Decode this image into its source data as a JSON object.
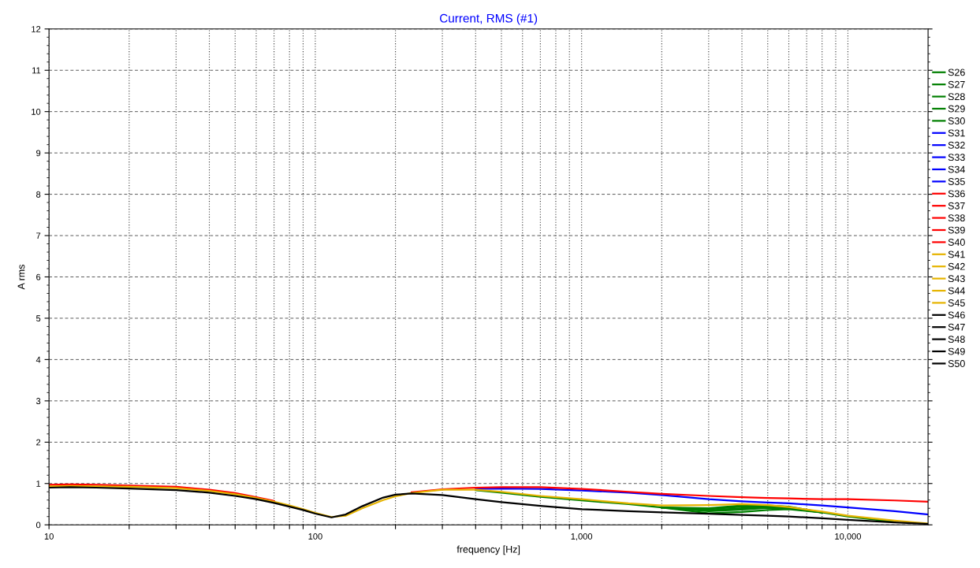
{
  "chart_data": {
    "type": "line",
    "title": "Current, RMS (#1)",
    "xlabel": "frequency [Hz]",
    "ylabel": "A rms",
    "log": "x",
    "x": [
      10,
      12,
      15,
      20,
      30,
      40,
      50,
      60,
      70,
      80,
      90,
      100,
      115,
      130,
      150,
      180,
      200,
      230,
      300,
      400,
      500,
      700,
      1000,
      1500,
      2000,
      3000,
      4000,
      5000,
      6000,
      8000,
      10000,
      15000,
      20000
    ],
    "xlim": [
      10,
      20000
    ],
    "xticks": [
      {
        "value": 10,
        "label": "10"
      },
      {
        "value": 20,
        "label": null
      },
      {
        "value": 30,
        "label": null
      },
      {
        "value": 40,
        "label": null
      },
      {
        "value": 50,
        "label": null
      },
      {
        "value": 60,
        "label": null
      },
      {
        "value": 70,
        "label": null
      },
      {
        "value": 80,
        "label": null
      },
      {
        "value": 90,
        "label": null
      },
      {
        "value": 100,
        "label": "100"
      },
      {
        "value": 200,
        "label": null
      },
      {
        "value": 300,
        "label": null
      },
      {
        "value": 400,
        "label": null
      },
      {
        "value": 500,
        "label": null
      },
      {
        "value": 600,
        "label": null
      },
      {
        "value": 700,
        "label": null
      },
      {
        "value": 800,
        "label": null
      },
      {
        "value": 900,
        "label": null
      },
      {
        "value": 1000,
        "label": "1,000"
      },
      {
        "value": 2000,
        "label": null
      },
      {
        "value": 3000,
        "label": null
      },
      {
        "value": 4000,
        "label": null
      },
      {
        "value": 5000,
        "label": null
      },
      {
        "value": 6000,
        "label": null
      },
      {
        "value": 7000,
        "label": null
      },
      {
        "value": 8000,
        "label": null
      },
      {
        "value": 9000,
        "label": null
      },
      {
        "value": 10000,
        "label": "10,000"
      }
    ],
    "ylim": [
      0,
      12
    ],
    "yticks": [
      0,
      1,
      2,
      3,
      4,
      5,
      6,
      7,
      8,
      9,
      10,
      11,
      12
    ],
    "grid": true,
    "legend": "right",
    "marker": "none",
    "line_style": "solid",
    "series": [
      {
        "name": "S26",
        "color": "#007f00",
        "values": [
          null,
          null,
          null,
          null,
          null,
          null,
          null,
          null,
          null,
          null,
          null,
          null,
          null,
          null,
          null,
          null,
          null,
          null,
          null,
          null,
          null,
          null,
          null,
          null,
          0.42,
          0.38,
          0.44,
          0.45,
          0.42,
          0.3,
          null,
          null,
          null
        ]
      },
      {
        "name": "S27",
        "color": "#007f00",
        "values": [
          null,
          null,
          null,
          null,
          null,
          null,
          null,
          null,
          null,
          null,
          null,
          null,
          null,
          null,
          null,
          null,
          null,
          null,
          null,
          null,
          null,
          null,
          null,
          null,
          0.42,
          0.33,
          0.37,
          0.41,
          0.4,
          0.3,
          null,
          null,
          null
        ]
      },
      {
        "name": "S28",
        "color": "#007f00",
        "values": [
          null,
          null,
          null,
          null,
          null,
          null,
          null,
          null,
          null,
          null,
          null,
          null,
          null,
          null,
          null,
          null,
          null,
          null,
          null,
          null,
          null,
          null,
          null,
          null,
          0.42,
          0.28,
          0.31,
          0.36,
          0.38,
          0.3,
          null,
          null,
          null
        ]
      },
      {
        "name": "S29",
        "color": "#007f00",
        "values": [
          null,
          null,
          null,
          null,
          null,
          null,
          null,
          null,
          null,
          null,
          null,
          null,
          null,
          null,
          null,
          null,
          null,
          null,
          null,
          null,
          null,
          null,
          null,
          null,
          0.42,
          0.4,
          0.47,
          0.47,
          0.44,
          0.3,
          null,
          null,
          null
        ]
      },
      {
        "name": "S30",
        "color": "#007f00",
        "values": [
          null,
          null,
          null,
          null,
          null,
          null,
          null,
          null,
          null,
          null,
          null,
          null,
          null,
          null,
          null,
          null,
          null,
          null,
          null,
          0.84,
          0.78,
          0.68,
          0.59,
          0.5,
          0.42,
          0.35,
          0.4,
          0.43,
          0.41,
          0.3,
          0.2,
          0.07,
          null
        ]
      },
      {
        "name": "S31",
        "color": "#0000ff",
        "values": [
          null,
          null,
          null,
          null,
          null,
          null,
          null,
          null,
          null,
          null,
          null,
          null,
          null,
          null,
          null,
          null,
          null,
          null,
          null,
          null,
          null,
          null,
          null,
          null,
          null,
          null,
          null,
          null,
          null,
          null,
          null,
          null,
          null
        ]
      },
      {
        "name": "S32",
        "color": "#0000ff",
        "values": [
          null,
          null,
          null,
          null,
          null,
          null,
          null,
          null,
          null,
          null,
          null,
          null,
          null,
          null,
          null,
          null,
          null,
          null,
          null,
          null,
          null,
          null,
          null,
          null,
          null,
          null,
          null,
          null,
          null,
          null,
          null,
          null,
          null
        ]
      },
      {
        "name": "S33",
        "color": "#0000ff",
        "values": [
          null,
          null,
          null,
          null,
          null,
          null,
          null,
          null,
          null,
          null,
          null,
          null,
          null,
          null,
          null,
          null,
          null,
          null,
          null,
          null,
          null,
          null,
          null,
          null,
          null,
          null,
          null,
          null,
          null,
          null,
          null,
          null,
          null
        ]
      },
      {
        "name": "S34",
        "color": "#0000ff",
        "values": [
          null,
          null,
          null,
          null,
          null,
          null,
          null,
          null,
          null,
          null,
          null,
          null,
          null,
          null,
          null,
          null,
          null,
          null,
          null,
          null,
          null,
          null,
          null,
          null,
          null,
          null,
          null,
          null,
          null,
          null,
          null,
          null,
          null
        ]
      },
      {
        "name": "S35",
        "color": "#0000ff",
        "values": [
          null,
          null,
          null,
          null,
          null,
          null,
          null,
          null,
          null,
          null,
          null,
          null,
          null,
          null,
          null,
          null,
          null,
          null,
          null,
          0.87,
          0.88,
          0.87,
          0.83,
          0.78,
          0.72,
          0.62,
          0.57,
          0.54,
          0.52,
          0.47,
          0.42,
          0.33,
          0.25
        ]
      },
      {
        "name": "S36",
        "color": "#ff0000",
        "values": [
          null,
          null,
          null,
          null,
          null,
          null,
          null,
          null,
          null,
          null,
          null,
          null,
          null,
          null,
          null,
          null,
          null,
          null,
          null,
          null,
          null,
          null,
          null,
          null,
          null,
          null,
          null,
          null,
          null,
          null,
          null,
          null,
          null
        ]
      },
      {
        "name": "S37",
        "color": "#ff0000",
        "values": [
          null,
          null,
          null,
          null,
          null,
          null,
          null,
          null,
          null,
          null,
          null,
          null,
          null,
          null,
          null,
          null,
          null,
          null,
          null,
          null,
          null,
          null,
          null,
          null,
          null,
          null,
          null,
          null,
          null,
          null,
          null,
          null,
          null
        ]
      },
      {
        "name": "S38",
        "color": "#ff0000",
        "values": [
          null,
          null,
          null,
          null,
          null,
          null,
          null,
          null,
          null,
          null,
          null,
          null,
          null,
          null,
          null,
          null,
          null,
          null,
          null,
          null,
          null,
          null,
          null,
          null,
          null,
          null,
          null,
          null,
          null,
          null,
          null,
          null,
          null
        ]
      },
      {
        "name": "S39",
        "color": "#ff0000",
        "values": [
          null,
          null,
          null,
          null,
          null,
          null,
          null,
          null,
          null,
          null,
          null,
          null,
          null,
          null,
          null,
          null,
          null,
          null,
          null,
          null,
          null,
          null,
          null,
          null,
          null,
          null,
          null,
          null,
          null,
          null,
          null,
          null,
          null
        ]
      },
      {
        "name": "S40",
        "color": "#ff0000",
        "values": [
          0.97,
          0.98,
          0.97,
          0.95,
          0.92,
          0.85,
          0.77,
          0.67,
          0.58,
          null,
          null,
          null,
          null,
          null,
          null,
          null,
          null,
          0.79,
          0.86,
          0.9,
          0.91,
          0.91,
          0.87,
          0.8,
          0.75,
          0.7,
          0.67,
          0.65,
          0.64,
          0.62,
          0.62,
          0.59,
          0.56
        ]
      },
      {
        "name": "S41",
        "color": "#e6b400",
        "values": [
          null,
          null,
          null,
          null,
          null,
          null,
          null,
          null,
          null,
          null,
          null,
          null,
          null,
          null,
          null,
          null,
          null,
          null,
          null,
          null,
          null,
          null,
          null,
          null,
          null,
          null,
          null,
          null,
          null,
          null,
          null,
          null,
          null
        ]
      },
      {
        "name": "S42",
        "color": "#e6b400",
        "values": [
          null,
          null,
          null,
          null,
          null,
          null,
          null,
          null,
          null,
          null,
          null,
          null,
          null,
          null,
          null,
          null,
          null,
          null,
          null,
          null,
          null,
          null,
          null,
          null,
          null,
          null,
          null,
          null,
          null,
          null,
          null,
          null,
          null
        ]
      },
      {
        "name": "S43",
        "color": "#e6b400",
        "values": [
          null,
          null,
          null,
          null,
          null,
          null,
          null,
          null,
          null,
          null,
          null,
          null,
          null,
          null,
          null,
          null,
          null,
          null,
          null,
          null,
          null,
          null,
          null,
          null,
          null,
          null,
          null,
          null,
          null,
          null,
          null,
          null,
          null
        ]
      },
      {
        "name": "S44",
        "color": "#e6b400",
        "values": [
          null,
          null,
          null,
          null,
          null,
          null,
          null,
          null,
          null,
          null,
          null,
          null,
          null,
          null,
          null,
          null,
          null,
          null,
          null,
          null,
          null,
          null,
          null,
          null,
          null,
          null,
          null,
          null,
          null,
          null,
          null,
          null,
          null
        ]
      },
      {
        "name": "S45",
        "color": "#e6b400",
        "values": [
          0.93,
          0.94,
          0.93,
          0.92,
          0.89,
          0.82,
          0.74,
          0.65,
          0.56,
          0.47,
          0.38,
          0.29,
          0.19,
          0.22,
          0.4,
          0.6,
          0.69,
          0.77,
          0.85,
          0.85,
          0.8,
          0.7,
          0.62,
          0.52,
          0.47,
          0.48,
          0.5,
          0.48,
          0.43,
          0.32,
          0.22,
          0.1,
          0.03
        ]
      },
      {
        "name": "S46",
        "color": "#000000",
        "values": [
          null,
          null,
          null,
          null,
          null,
          null,
          null,
          null,
          null,
          null,
          null,
          null,
          null,
          null,
          null,
          null,
          null,
          null,
          null,
          null,
          null,
          null,
          null,
          null,
          null,
          null,
          null,
          null,
          null,
          null,
          null,
          null,
          null
        ]
      },
      {
        "name": "S47",
        "color": "#000000",
        "values": [
          null,
          null,
          null,
          null,
          null,
          null,
          null,
          null,
          null,
          null,
          null,
          null,
          null,
          null,
          null,
          null,
          null,
          null,
          null,
          null,
          null,
          null,
          null,
          null,
          null,
          null,
          null,
          null,
          null,
          null,
          null,
          null,
          null
        ]
      },
      {
        "name": "S48",
        "color": "#000000",
        "values": [
          null,
          null,
          null,
          null,
          null,
          null,
          null,
          null,
          null,
          null,
          null,
          null,
          null,
          null,
          null,
          null,
          null,
          null,
          null,
          null,
          null,
          null,
          null,
          null,
          null,
          null,
          null,
          null,
          null,
          null,
          null,
          null,
          null
        ]
      },
      {
        "name": "S49",
        "color": "#000000",
        "values": [
          null,
          null,
          null,
          null,
          null,
          null,
          null,
          null,
          null,
          null,
          null,
          null,
          null,
          null,
          null,
          null,
          null,
          null,
          null,
          null,
          null,
          null,
          null,
          null,
          null,
          null,
          null,
          null,
          null,
          null,
          null,
          null,
          null
        ]
      },
      {
        "name": "S50",
        "color": "#000000",
        "values": [
          0.9,
          0.91,
          0.9,
          0.88,
          0.84,
          0.78,
          0.7,
          0.62,
          0.53,
          0.44,
          0.36,
          0.27,
          0.18,
          0.25,
          0.45,
          0.66,
          0.73,
          0.76,
          0.72,
          0.62,
          0.55,
          0.46,
          0.38,
          0.33,
          0.3,
          0.27,
          0.24,
          0.22,
          0.2,
          0.16,
          0.12,
          0.06,
          0.02
        ]
      }
    ]
  }
}
